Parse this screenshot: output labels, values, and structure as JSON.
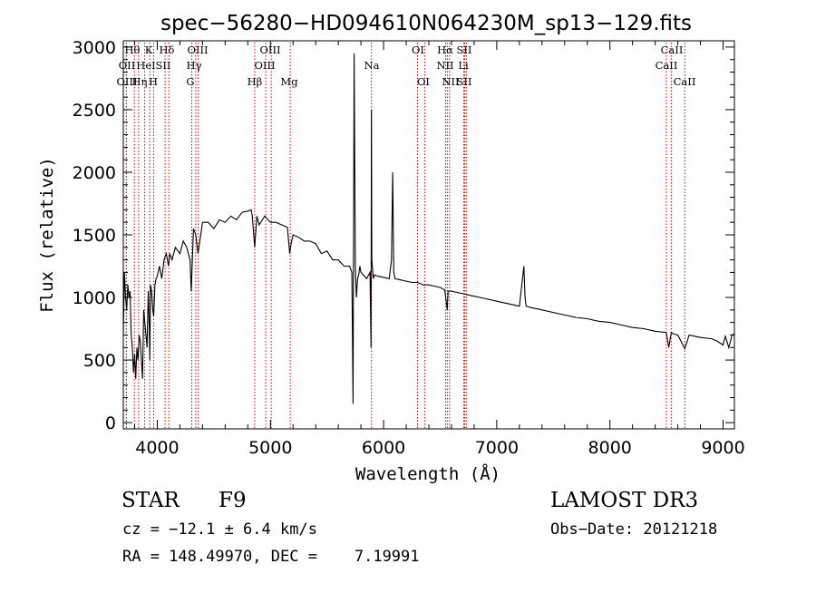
{
  "chart_data": {
    "type": "line",
    "title": "spec−56280−HD094610N064230M_sp13−129.fits",
    "xlabel": "Wavelength (Å)",
    "ylabel": "Flux (relative)",
    "xlim": [
      3700,
      9100
    ],
    "ylim": [
      -50,
      3050
    ],
    "xticks": [
      4000,
      5000,
      6000,
      7000,
      8000,
      9000
    ],
    "yticks": [
      0,
      500,
      1000,
      1500,
      2000,
      2500,
      3000
    ],
    "series": [
      {
        "name": "spectrum",
        "x": [
          3700,
          3710,
          3720,
          3730,
          3740,
          3750,
          3760,
          3770,
          3780,
          3790,
          3800,
          3810,
          3820,
          3830,
          3840,
          3850,
          3860,
          3870,
          3880,
          3890,
          3900,
          3910,
          3920,
          3930,
          3934,
          3940,
          3950,
          3960,
          3968,
          3980,
          3990,
          4000,
          4020,
          4040,
          4060,
          4080,
          4100,
          4110,
          4130,
          4160,
          4200,
          4230,
          4260,
          4290,
          4300,
          4320,
          4340,
          4360,
          4400,
          4450,
          4500,
          4550,
          4600,
          4650,
          4700,
          4750,
          4800,
          4830,
          4840,
          4861,
          4880,
          4900,
          4950,
          5000,
          5050,
          5100,
          5150,
          5170,
          5183,
          5200,
          5250,
          5300,
          5350,
          5400,
          5450,
          5500,
          5550,
          5600,
          5650,
          5700,
          5720,
          5730,
          5740,
          5750,
          5760,
          5770,
          5780,
          5790,
          5800,
          5850,
          5880,
          5889,
          5893,
          5896,
          5910,
          5920,
          5950,
          6000,
          6050,
          6070,
          6080,
          6090,
          6100,
          6150,
          6200,
          6250,
          6300,
          6350,
          6400,
          6450,
          6500,
          6540,
          6563,
          6570,
          6600,
          6650,
          6700,
          6750,
          6800,
          6850,
          6900,
          7000,
          7100,
          7200,
          7240,
          7250,
          7260,
          7300,
          7400,
          7500,
          7600,
          7700,
          7800,
          7900,
          8000,
          8100,
          8200,
          8300,
          8400,
          8498,
          8520,
          8542,
          8560,
          8600,
          8662,
          8700,
          8800,
          8900,
          8950,
          9000,
          9020,
          9050,
          9080,
          9100
        ],
        "values": [
          700,
          1200,
          1000,
          900,
          1100,
          1000,
          1050,
          700,
          600,
          400,
          550,
          350,
          600,
          500,
          700,
          650,
          500,
          350,
          900,
          800,
          700,
          600,
          1050,
          750,
          500,
          1100,
          1050,
          900,
          850,
          1100,
          1150,
          1170,
          1250,
          1150,
          1300,
          1350,
          1250,
          1350,
          1300,
          1400,
          1350,
          1450,
          1400,
          1300,
          1050,
          1550,
          1500,
          1350,
          1600,
          1600,
          1550,
          1620,
          1600,
          1650,
          1620,
          1680,
          1690,
          1700,
          1650,
          1400,
          1650,
          1580,
          1650,
          1600,
          1600,
          1580,
          1560,
          1350,
          1430,
          1500,
          1480,
          1450,
          1450,
          1430,
          1350,
          1370,
          1300,
          1300,
          1250,
          1250,
          1200,
          150,
          2950,
          1250,
          1000,
          1150,
          1180,
          1250,
          1200,
          1150,
          1200,
          600,
          2500,
          1300,
          1150,
          1180,
          1170,
          1160,
          1150,
          1300,
          2000,
          1200,
          1150,
          1140,
          1130,
          1120,
          1120,
          1100,
          1100,
          1090,
          1080,
          1060,
          900,
          1050,
          1050,
          1040,
          1030,
          1020,
          1010,
          1000,
          990,
          970,
          950,
          930,
          1250,
          1000,
          930,
          920,
          900,
          880,
          860,
          840,
          830,
          810,
          800,
          780,
          760,
          750,
          730,
          720,
          600,
          720,
          710,
          700,
          590,
          700,
          680,
          670,
          650,
          620,
          690,
          600,
          700,
          710
        ]
      }
    ],
    "spectral_lines": [
      {
        "name": "Hθ",
        "wavelength": 3798
      },
      {
        "name": "OII",
        "wavelength": 3727
      },
      {
        "name": "OIII",
        "wavelength": 3727
      },
      {
        "name": "K",
        "wavelength": 3934
      },
      {
        "name": "HeI",
        "wavelength": 3889
      },
      {
        "name": "Hη",
        "wavelength": 3835
      },
      {
        "name": "Hδ",
        "wavelength": 4102
      },
      {
        "name": "SII",
        "wavelength": 4069
      },
      {
        "name": "H",
        "wavelength": 3968
      },
      {
        "name": "OIII",
        "wavelength": 4363
      },
      {
        "name": "Hγ",
        "wavelength": 4340
      },
      {
        "name": "G",
        "wavelength": 4305
      },
      {
        "name": "OIII",
        "wavelength": 5007
      },
      {
        "name": "OIII",
        "wavelength": 4959
      },
      {
        "name": "Hβ",
        "wavelength": 4861
      },
      {
        "name": "Mg",
        "wavelength": 5175
      },
      {
        "name": "Na",
        "wavelength": 5893
      },
      {
        "name": "OI",
        "wavelength": 6300
      },
      {
        "name": "OI",
        "wavelength": 6363
      },
      {
        "name": "Hα",
        "wavelength": 6563
      },
      {
        "name": "NII",
        "wavelength": 6548
      },
      {
        "name": "NII",
        "wavelength": 6583
      },
      {
        "name": "SII",
        "wavelength": 6717
      },
      {
        "name": "Li",
        "wavelength": 6708
      },
      {
        "name": "SII",
        "wavelength": 6731
      },
      {
        "name": "CaII",
        "wavelength": 8542
      },
      {
        "name": "CaII",
        "wavelength": 8498
      },
      {
        "name": "CaII",
        "wavelength": 8662
      }
    ]
  },
  "footer": {
    "class_label": "STAR",
    "subclass": "F9",
    "survey": "LAMOST DR3",
    "redshift": "cz = −12.1 ± 6.4 km/s",
    "obs_date": "Obs−Date: 20121218",
    "coords": "RA = 148.49970, DEC =    7.19991"
  }
}
